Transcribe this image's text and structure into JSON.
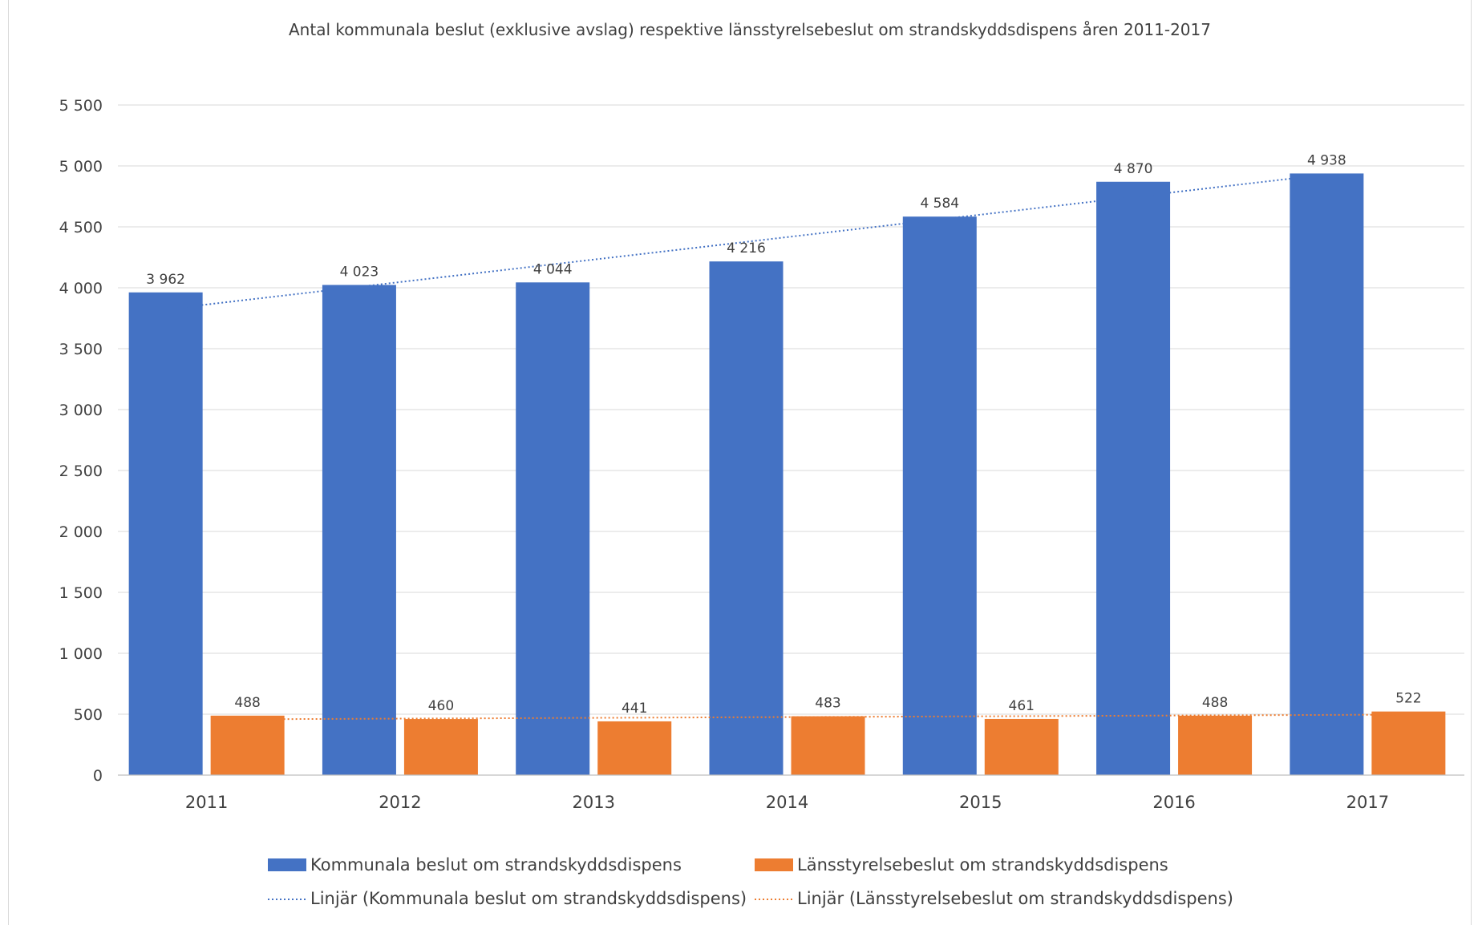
{
  "chart_data": {
    "type": "bar",
    "title": "Antal kommunala beslut (exklusive avslag) respektive länsstyrelsebeslut om strandskyddsdispens  åren 2011-2017",
    "categories": [
      "2011",
      "2012",
      "2013",
      "2014",
      "2015",
      "2016",
      "2017"
    ],
    "series": [
      {
        "name": "Kommunala beslut om strandskyddsdispens",
        "values": [
          3962,
          4023,
          4044,
          4216,
          4584,
          4870,
          4938
        ],
        "labels": [
          "3 962",
          "4 023",
          "4 044",
          "4 216",
          "4 584",
          "4 870",
          "4 938"
        ],
        "color": "#4472C4"
      },
      {
        "name": "Länsstyrelsebeslut om strandskyddsdispens",
        "values": [
          488,
          460,
          441,
          483,
          461,
          488,
          522
        ],
        "labels": [
          "488",
          "460",
          "441",
          "483",
          "461",
          "488",
          "522"
        ],
        "color": "#ED7D31"
      }
    ],
    "trendlines": [
      {
        "name": "Linjär (Kommunala beslut om strandskyddsdispens)",
        "series": 0,
        "style": "dotted",
        "color": "#4472C4"
      },
      {
        "name": "Linjär (Länsstyrelsebeslut om strandskyddsdispens)",
        "series": 1,
        "style": "dotted",
        "color": "#ED7D31"
      }
    ],
    "ylim": [
      0,
      5500
    ],
    "yticks": [
      0,
      500,
      1000,
      1500,
      2000,
      2500,
      3000,
      3500,
      4000,
      4500,
      5000,
      5500
    ],
    "ytick_labels": [
      "0",
      "500",
      "1 000",
      "1 500",
      "2 000",
      "2 500",
      "3 000",
      "3 500",
      "4 000",
      "4 500",
      "5 000",
      "5 500"
    ],
    "grid": true,
    "legend_position": "bottom",
    "gridline_color": "#d9d9d9",
    "text_color": "#404040"
  }
}
